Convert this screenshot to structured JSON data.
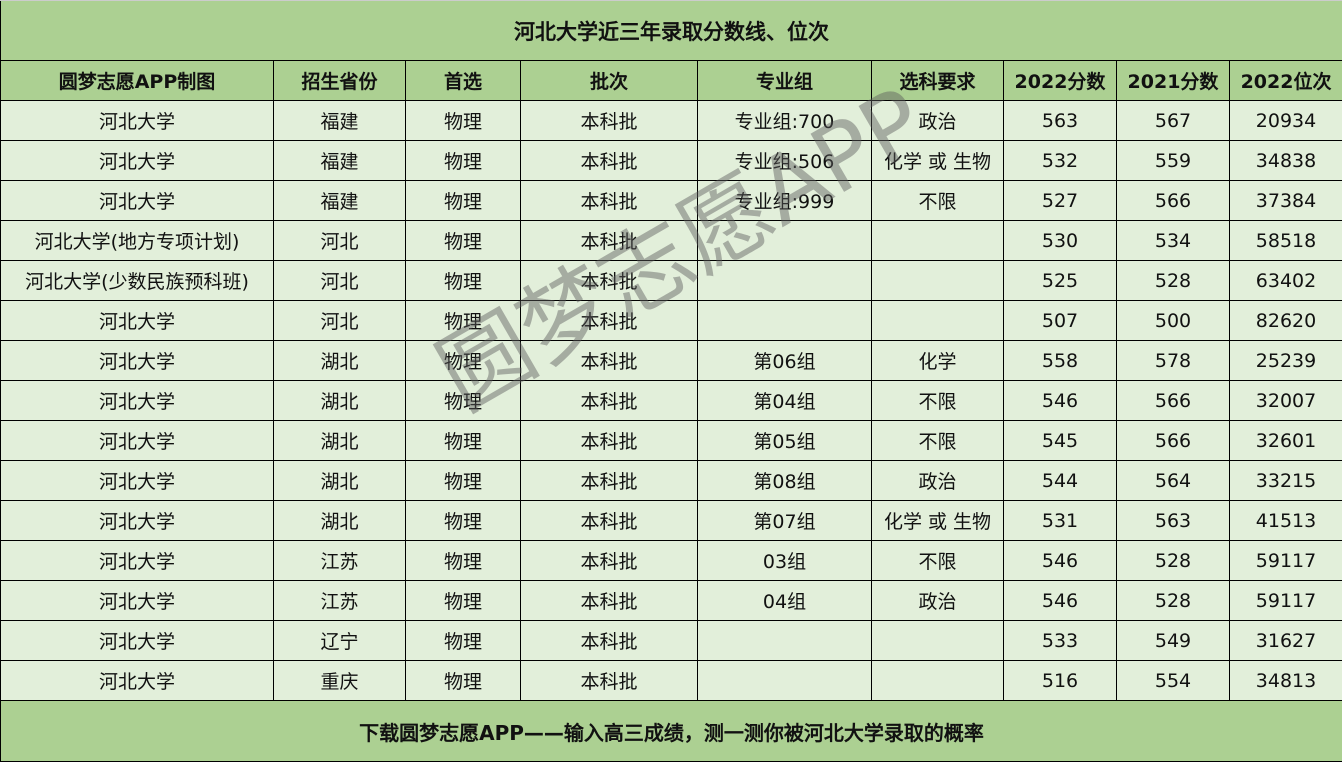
{
  "title": "河北大学近三年录取分数线、位次",
  "headers": [
    "圆梦志愿APP制图",
    "招生省份",
    "首选",
    "批次",
    "专业组",
    "选科要求",
    "2022分数",
    "2021分数",
    "2022位次"
  ],
  "rows": [
    [
      "河北大学",
      "福建",
      "物理",
      "本科批",
      "专业组:700",
      "政治",
      "563",
      "567",
      "20934"
    ],
    [
      "河北大学",
      "福建",
      "物理",
      "本科批",
      "专业组:506",
      "化学 或 生物",
      "532",
      "559",
      "34838"
    ],
    [
      "河北大学",
      "福建",
      "物理",
      "本科批",
      "专业组:999",
      "不限",
      "527",
      "566",
      "37384"
    ],
    [
      "河北大学(地方专项计划)",
      "河北",
      "物理",
      "本科批",
      "",
      "",
      "530",
      "534",
      "58518"
    ],
    [
      "河北大学(少数民族预科班)",
      "河北",
      "物理",
      "本科批",
      "",
      "",
      "525",
      "528",
      "63402"
    ],
    [
      "河北大学",
      "河北",
      "物理",
      "本科批",
      "",
      "",
      "507",
      "500",
      "82620"
    ],
    [
      "河北大学",
      "湖北",
      "物理",
      "本科批",
      "第06组",
      "化学",
      "558",
      "578",
      "25239"
    ],
    [
      "河北大学",
      "湖北",
      "物理",
      "本科批",
      "第04组",
      "不限",
      "546",
      "566",
      "32007"
    ],
    [
      "河北大学",
      "湖北",
      "物理",
      "本科批",
      "第05组",
      "不限",
      "545",
      "566",
      "32601"
    ],
    [
      "河北大学",
      "湖北",
      "物理",
      "本科批",
      "第08组",
      "政治",
      "544",
      "564",
      "33215"
    ],
    [
      "河北大学",
      "湖北",
      "物理",
      "本科批",
      "第07组",
      "化学 或 生物",
      "531",
      "563",
      "41513"
    ],
    [
      "河北大学",
      "江苏",
      "物理",
      "本科批",
      "03组",
      "不限",
      "546",
      "528",
      "59117"
    ],
    [
      "河北大学",
      "江苏",
      "物理",
      "本科批",
      "04组",
      "政治",
      "546",
      "528",
      "59117"
    ],
    [
      "河北大学",
      "辽宁",
      "物理",
      "本科批",
      "",
      "",
      "533",
      "549",
      "31627"
    ],
    [
      "河北大学",
      "重庆",
      "物理",
      "本科批",
      "",
      "",
      "516",
      "554",
      "34813"
    ]
  ],
  "footer": "下载圆梦志愿APP——输入高三成绩，测一测你被河北大学录取的概率",
  "watermark": "圆梦志愿APP",
  "colors": {
    "header_bg": "#acd092",
    "row_bg": "#e2efda"
  }
}
